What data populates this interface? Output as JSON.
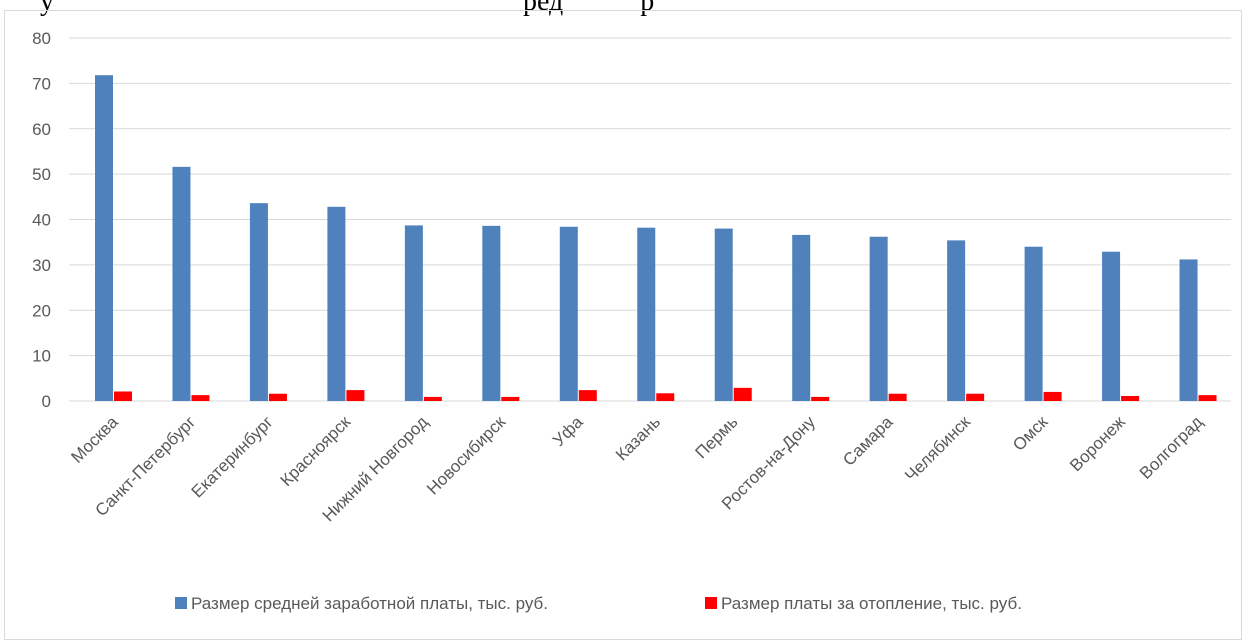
{
  "header_fragment": "...у                                                                   ...ред... ...р... ...",
  "chart_data": {
    "type": "bar",
    "ylim": [
      0,
      80
    ],
    "yticks": [
      0,
      10,
      20,
      30,
      40,
      50,
      60,
      70,
      80
    ],
    "grid": true,
    "legend_position": "bottom",
    "categories": [
      "Москва",
      "Санкт-Петербург",
      "Екатеринбург",
      "Красноярск",
      "Нижний Новгород",
      "Новосибирск",
      "Уфа",
      "Казань",
      "Пермь",
      "Ростов-на-Дону",
      "Самара",
      "Челябинск",
      "Омск",
      "Воронеж",
      "Волгоград"
    ],
    "series": [
      {
        "name": "Размер средней заработной платы, тыс. руб.",
        "color": "#4f81bd",
        "values": [
          71.8,
          51.6,
          43.6,
          42.8,
          38.7,
          38.6,
          38.4,
          38.2,
          38.0,
          36.6,
          36.2,
          35.4,
          34.0,
          32.9,
          31.2
        ]
      },
      {
        "name": "Размер платы за отопление, тыс. руб.",
        "color": "#ff0000",
        "values": [
          2.1,
          1.3,
          1.6,
          2.4,
          0.9,
          0.9,
          2.4,
          1.7,
          2.9,
          0.9,
          1.6,
          1.6,
          2.0,
          1.1,
          1.3
        ]
      }
    ]
  }
}
